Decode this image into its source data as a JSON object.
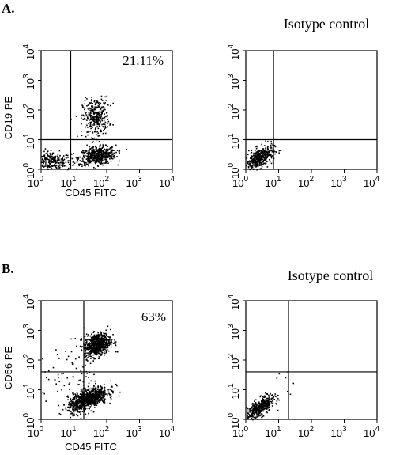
{
  "chart_data": [
    {
      "type": "scatter",
      "panel": "A.",
      "title": "",
      "quadrant_percent": "21.11%",
      "xlabel": "CD45 FITC",
      "ylabel": "CD19 PE",
      "xlim": [
        1,
        10000
      ],
      "ylim": [
        1,
        10000
      ],
      "scale": "log",
      "tick_labels": [
        "10",
        "10",
        "10",
        "10",
        "10"
      ],
      "tick_exponents": [
        "0",
        "1",
        "2",
        "3",
        "4"
      ],
      "gates": {
        "x": 8,
        "y": 10
      },
      "clusters": [
        {
          "cx": 2,
          "cy": 2,
          "sx": 0.3,
          "sy": 0.16,
          "n": 260,
          "r": -0.15
        },
        {
          "cx": 50,
          "cy": 3,
          "sx": 0.28,
          "sy": 0.15,
          "n": 520,
          "r": 0.2
        },
        {
          "cx": 45,
          "cy": 60,
          "sx": 0.2,
          "sy": 0.32,
          "n": 320,
          "r": 0.1
        }
      ]
    },
    {
      "type": "scatter",
      "panel": "",
      "title": "Isotype control",
      "quadrant_percent": "",
      "xlabel": "",
      "ylabel": "",
      "xlim": [
        1,
        10000
      ],
      "ylim": [
        1,
        10000
      ],
      "scale": "log",
      "tick_labels": [
        "10",
        "10",
        "10",
        "10",
        "10"
      ],
      "tick_exponents": [
        "0",
        "1",
        "2",
        "3",
        "4"
      ],
      "gates": {
        "x": 7,
        "y": 10
      },
      "clusters": [
        {
          "cx": 2.5,
          "cy": 2.5,
          "sx": 0.22,
          "sy": 0.2,
          "n": 420,
          "r": 0.55
        }
      ]
    },
    {
      "type": "scatter",
      "panel": "B.",
      "title": "",
      "quadrant_percent": "63%",
      "xlabel": "CD45 FITC",
      "ylabel": "CD56 PE",
      "xlim": [
        1,
        10000
      ],
      "ylim": [
        1,
        10000
      ],
      "scale": "log",
      "tick_labels": [
        "10",
        "10",
        "10",
        "10",
        "10"
      ],
      "tick_exponents": [
        "0",
        "1",
        "2",
        "3",
        "4"
      ],
      "gates": {
        "x": 20,
        "y": 40
      },
      "clusters": [
        {
          "cx": 50,
          "cy": 350,
          "sx": 0.2,
          "sy": 0.2,
          "n": 650,
          "r": 0.3
        },
        {
          "cx": 25,
          "cy": 5,
          "sx": 0.3,
          "sy": 0.2,
          "n": 900,
          "r": 0.6
        },
        {
          "cx": 8,
          "cy": 30,
          "sx": 0.6,
          "sy": 0.6,
          "n": 80,
          "r": 0.0
        }
      ]
    },
    {
      "type": "scatter",
      "panel": "",
      "title": "Isotype control",
      "quadrant_percent": "",
      "xlabel": "",
      "ylabel": "",
      "xlim": [
        1,
        10000
      ],
      "ylim": [
        1,
        10000
      ],
      "scale": "log",
      "tick_labels": [
        "10",
        "10",
        "10",
        "10",
        "10"
      ],
      "tick_exponents": [
        "0",
        "1",
        "2",
        "3",
        "4"
      ],
      "gates": {
        "x": 20,
        "y": 40
      },
      "clusters": [
        {
          "cx": 2.5,
          "cy": 2.5,
          "sx": 0.22,
          "sy": 0.2,
          "n": 450,
          "r": 0.7
        },
        {
          "cx": 15,
          "cy": 20,
          "sx": 0.15,
          "sy": 0.15,
          "n": 6,
          "r": 0.0
        }
      ]
    }
  ]
}
